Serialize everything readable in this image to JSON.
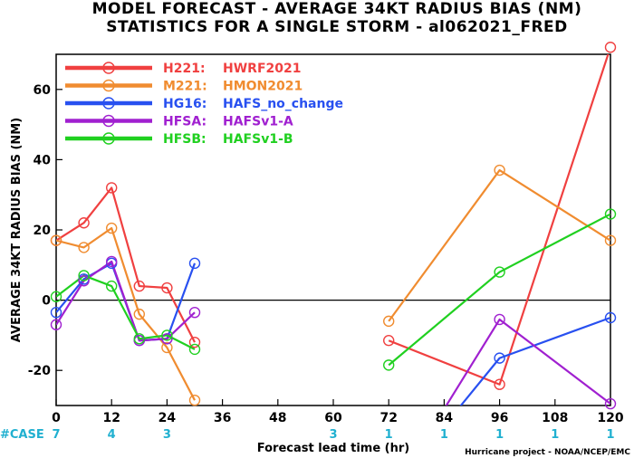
{
  "chart_data": {
    "type": "line",
    "title": "MODEL FORECAST - AVERAGE 34KT RADIUS BIAS (NM)",
    "subtitle": "STATISTICS FOR A SINGLE STORM - al062021_FRED",
    "xlabel": "Forecast lead time (hr)",
    "ylabel": "AVERAGE 34KT RADIUS BIAS (NM)",
    "xlim": [
      0,
      120
    ],
    "ylim": [
      -30,
      70
    ],
    "x_ticks": [
      "0",
      "12",
      "24",
      "36",
      "48",
      "60",
      "72",
      "84",
      "96",
      "108",
      "120"
    ],
    "y_ticks": [
      "-20",
      "0",
      "20",
      "40",
      "60"
    ],
    "zero_line": true,
    "legend_position": "top-left",
    "case_label": "#CASE",
    "cases": [
      {
        "x": 0,
        "n": "7"
      },
      {
        "x": 12,
        "n": "4"
      },
      {
        "x": 24,
        "n": "3"
      },
      {
        "x": 60,
        "n": "3"
      },
      {
        "x": 72,
        "n": "1"
      },
      {
        "x": 84,
        "n": "1"
      },
      {
        "x": 96,
        "n": "1"
      },
      {
        "x": 108,
        "n": "1"
      },
      {
        "x": 120,
        "n": "1"
      }
    ],
    "series": [
      {
        "name": "H221",
        "desc": "HWRF2021",
        "color": "#f04040",
        "segments": [
          [
            [
              0,
              17
            ],
            [
              6,
              22
            ],
            [
              12,
              32
            ],
            [
              18,
              4
            ],
            [
              24,
              3.5
            ],
            [
              30,
              -12
            ]
          ],
          [
            [
              72,
              -11.5
            ],
            [
              96,
              -24
            ],
            [
              120,
              72
            ]
          ]
        ]
      },
      {
        "name": "M221",
        "desc": "HMON2021",
        "color": "#f08c30",
        "segments": [
          [
            [
              0,
              17
            ],
            [
              6,
              15
            ],
            [
              12,
              20.5
            ],
            [
              18,
              -4
            ],
            [
              24,
              -13.5
            ],
            [
              30,
              -28.5
            ]
          ],
          [
            [
              72,
              -6
            ],
            [
              96,
              37
            ],
            [
              120,
              17
            ]
          ]
        ]
      },
      {
        "name": "HG16",
        "desc": "HAFS_no_change",
        "color": "#2850f0",
        "segments": [
          [
            [
              0,
              -3.5
            ],
            [
              6,
              6
            ],
            [
              12,
              10.5
            ],
            [
              18,
              -11.5
            ],
            [
              24,
              -11
            ],
            [
              30,
              10.5
            ]
          ],
          [
            [
              87,
              -31
            ],
            [
              96,
              -16.5
            ],
            [
              120,
              -5
            ]
          ]
        ]
      },
      {
        "name": "HFSA",
        "desc": "HAFSv1-A",
        "color": "#a020d0",
        "segments": [
          [
            [
              0,
              -7
            ],
            [
              6,
              5.5
            ],
            [
              12,
              11
            ],
            [
              18,
              -11.5
            ],
            [
              24,
              -11
            ],
            [
              30,
              -3.5
            ]
          ],
          [
            [
              84,
              -31
            ],
            [
              96,
              -5.5
            ],
            [
              120,
              -29.5
            ]
          ]
        ]
      },
      {
        "name": "HFSB",
        "desc": "HAFSv1-B",
        "color": "#20d020",
        "segments": [
          [
            [
              0,
              1
            ],
            [
              6,
              7
            ],
            [
              12,
              4
            ],
            [
              18,
              -11
            ],
            [
              24,
              -10
            ],
            [
              30,
              -14
            ]
          ],
          [
            [
              72,
              -18.5
            ],
            [
              96,
              8
            ],
            [
              120,
              24.5
            ]
          ]
        ]
      }
    ]
  },
  "colors": {
    "case_label": "#20b0d0",
    "zero_line": "#000000",
    "background": "#ffffff"
  },
  "credit": "Hurricane project - NOAA/NCEP/EMC"
}
